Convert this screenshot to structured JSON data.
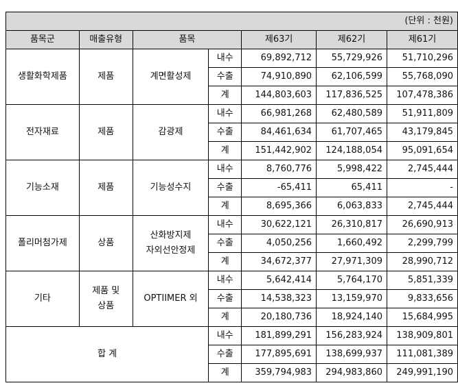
{
  "unit": "(단위 : 천원)",
  "headers": {
    "group": "품목군",
    "sales_type": "매출유형",
    "item": "품목",
    "fy63": "제63기",
    "fy62": "제62기",
    "fy61": "제61기"
  },
  "groups": [
    {
      "group": "생활화학제품",
      "sales_type": [
        "제품"
      ],
      "item": [
        "계면활성제"
      ],
      "rows": [
        {
          "kind": "내수",
          "fy63": "69,892,712",
          "fy62": "55,729,926",
          "fy61": "51,710,296"
        },
        {
          "kind": "수출",
          "fy63": "74,910,890",
          "fy62": "62,106,599",
          "fy61": "55,768,090"
        },
        {
          "kind": "계",
          "fy63": "144,803,603",
          "fy62": "117,836,525",
          "fy61": "107,478,386"
        }
      ]
    },
    {
      "group": "전자재료",
      "sales_type": [
        "제품"
      ],
      "item": [
        "감광제"
      ],
      "rows": [
        {
          "kind": "내수",
          "fy63": "66,981,268",
          "fy62": "62,480,589",
          "fy61": "51,911,809"
        },
        {
          "kind": "수출",
          "fy63": "84,461,634",
          "fy62": "61,707,465",
          "fy61": "43,179,845"
        },
        {
          "kind": "계",
          "fy63": "151,442,902",
          "fy62": "124,188,054",
          "fy61": "95,091,654"
        }
      ]
    },
    {
      "group": "기능소재",
      "sales_type": [
        "제품"
      ],
      "item": [
        "기능성수지"
      ],
      "rows": [
        {
          "kind": "내수",
          "fy63": "8,760,776",
          "fy62": "5,998,422",
          "fy61": "2,745,444"
        },
        {
          "kind": "수출",
          "fy63": "-65,411",
          "fy62": "65,411",
          "fy61": "-"
        },
        {
          "kind": "계",
          "fy63": "8,695,366",
          "fy62": "6,063,833",
          "fy61": "2,745,444"
        }
      ]
    },
    {
      "group": "폴리머첨가제",
      "sales_type": [
        "상품"
      ],
      "item": [
        "산화방지제",
        "자외선안정제"
      ],
      "rows": [
        {
          "kind": "내수",
          "fy63": "30,622,121",
          "fy62": "26,310,817",
          "fy61": "26,690,913"
        },
        {
          "kind": "수출",
          "fy63": "4,050,256",
          "fy62": "1,660,492",
          "fy61": "2,299,799"
        },
        {
          "kind": "계",
          "fy63": "34,672,377",
          "fy62": "27,971,309",
          "fy61": "28,990,712"
        }
      ]
    },
    {
      "group": "기타",
      "sales_type": [
        "제품 및",
        "상품"
      ],
      "item": [
        "OPTIIMER 외"
      ],
      "rows": [
        {
          "kind": "내수",
          "fy63": "5,642,414",
          "fy62": "5,764,170",
          "fy61": "5,851,339"
        },
        {
          "kind": "수출",
          "fy63": "14,538,323",
          "fy62": "13,159,970",
          "fy61": "9,833,656"
        },
        {
          "kind": "계",
          "fy63": "20,180,736",
          "fy62": "18,924,140",
          "fy61": "15,684,995"
        }
      ]
    }
  ],
  "total": {
    "label": "합 계",
    "rows": [
      {
        "kind": "내수",
        "fy63": "181,899,291",
        "fy62": "156,283,924",
        "fy61": "138,909,801"
      },
      {
        "kind": "수출",
        "fy63": "177,895,691",
        "fy62": "138,699,937",
        "fy61": "111,081,389"
      },
      {
        "kind": "계",
        "fy63": "359,794,983",
        "fy62": "294,983,860",
        "fy61": "249,991,190"
      }
    ]
  }
}
